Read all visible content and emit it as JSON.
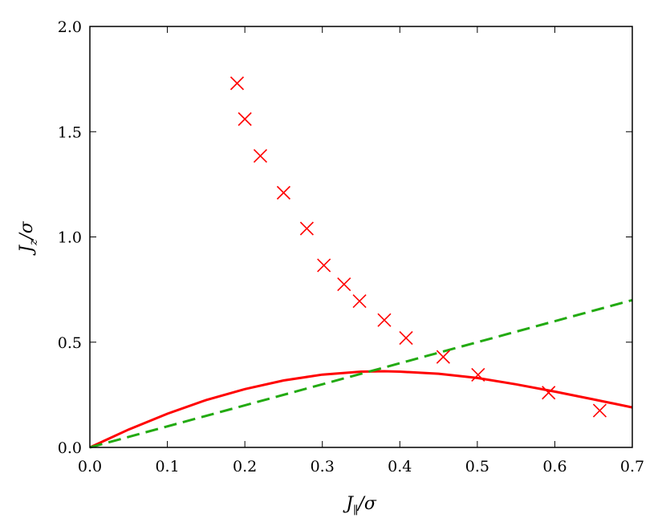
{
  "chart_data": {
    "type": "line",
    "title": "",
    "xlabel": {
      "main": "J",
      "sub": "∥",
      "denom": "/σ"
    },
    "ylabel": {
      "main": "J",
      "sub": "z",
      "denom": "/σ"
    },
    "xlim": [
      0.0,
      0.7
    ],
    "ylim": [
      0.0,
      2.0
    ],
    "xticks": [
      "0.0",
      "0.1",
      "0.2",
      "0.3",
      "0.4",
      "0.5",
      "0.6",
      "0.7"
    ],
    "yticks": [
      "0.0",
      "0.5",
      "1.0",
      "1.5",
      "2.0"
    ],
    "grid": false,
    "legend": "none",
    "series": [
      {
        "style": "solid-line",
        "color": "#ff0000",
        "x": [
          0.0,
          0.05,
          0.1,
          0.15,
          0.2,
          0.25,
          0.3,
          0.35,
          0.38,
          0.4,
          0.45,
          0.5,
          0.55,
          0.6,
          0.65,
          0.7
        ],
        "y": [
          0.0,
          0.085,
          0.16,
          0.225,
          0.277,
          0.318,
          0.346,
          0.36,
          0.362,
          0.36,
          0.35,
          0.33,
          0.3,
          0.265,
          0.228,
          0.19
        ]
      },
      {
        "style": "dashed-line",
        "color": "#22aa11",
        "x": [
          0.0,
          0.7
        ],
        "y": [
          0.0,
          0.7
        ]
      },
      {
        "style": "x-markers",
        "color": "#ff0000",
        "x": [
          0.19,
          0.2,
          0.22,
          0.25,
          0.28,
          0.302,
          0.328,
          0.348,
          0.38,
          0.408,
          0.456,
          0.501,
          0.592,
          0.658
        ],
        "y": [
          1.73,
          1.56,
          1.385,
          1.21,
          1.04,
          0.865,
          0.775,
          0.695,
          0.605,
          0.52,
          0.43,
          0.345,
          0.26,
          0.175
        ]
      }
    ]
  }
}
